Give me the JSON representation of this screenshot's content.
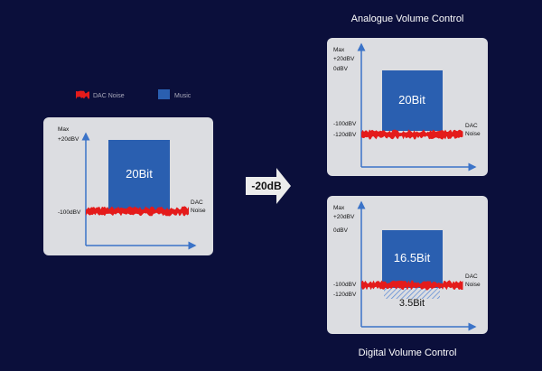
{
  "legend": {
    "noise": "DAC Noise",
    "music": "Music"
  },
  "operation": "-20dB",
  "original": {
    "axis_labels": [
      "Max",
      "+20dBV",
      "-100dBV"
    ],
    "block_label": "20Bit",
    "noise_label": [
      "DAC",
      "Noise"
    ]
  },
  "analogue": {
    "title": "Analogue Volume Control",
    "axis_labels": [
      "Max",
      "+20dBV",
      "0dBV",
      "-100dBV",
      "-120dBV"
    ],
    "block_label": "20Bit",
    "noise_label": [
      "DAC",
      "Noise"
    ]
  },
  "digital": {
    "title": "Digital Volume Control",
    "axis_labels": [
      "Max",
      "+20dBV",
      "0dBV",
      "-100dBV",
      "-120dBV"
    ],
    "block_label": "16.5Bit",
    "lost_label": "3.5Bit",
    "noise_label": [
      "DAC",
      "Noise"
    ]
  }
}
